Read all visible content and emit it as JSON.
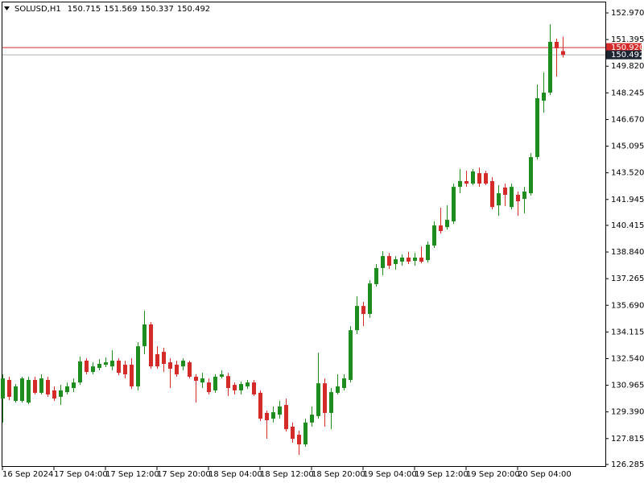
{
  "chart_data": {
    "type": "candlestick",
    "title": "SOLUSD,H1",
    "header_values": [
      150.715,
      151.569,
      150.337,
      150.492
    ],
    "categories": [
      "16 Sep 2024",
      null,
      null,
      null,
      null,
      null,
      null,
      null,
      "17 Sep 04:00",
      null,
      null,
      null,
      null,
      null,
      null,
      null,
      "17 Sep 12:00",
      null,
      null,
      null,
      null,
      null,
      null,
      null,
      "17 Sep 20:00",
      null,
      null,
      null,
      null,
      null,
      null,
      null,
      "18 Sep 04:00",
      null,
      null,
      null,
      null,
      null,
      null,
      null,
      "18 Sep 12:00",
      null,
      null,
      null,
      null,
      null,
      null,
      null,
      "18 Sep 20:00",
      null,
      null,
      null,
      null,
      null,
      null,
      null,
      "19 Sep 04:00",
      null,
      null,
      null,
      null,
      null,
      null,
      null,
      "19 Sep 12:00",
      null,
      null,
      null,
      null,
      null,
      null,
      null,
      "19 Sep 20:00",
      null,
      null,
      null,
      null,
      null,
      null,
      null,
      "20 Sep 04:00",
      null,
      null,
      null,
      null,
      null,
      null,
      null
    ],
    "open": [
      130.18,
      131.28,
      130.04,
      130.04,
      129.94,
      131.28,
      130.52,
      131.28,
      130.66,
      130.28,
      130.56,
      130.8,
      131.13,
      132.42,
      131.75,
      131.99,
      132.18,
      132.08,
      132.42,
      132.18,
      132.18,
      130.9,
      133.27,
      134.56,
      132.8,
      132.94,
      132.32,
      132.18,
      132.08,
      132.32,
      131.47,
      131.13,
      131.13,
      130.66,
      131.47,
      131.51,
      130.99,
      130.66,
      130.9,
      131.13,
      130.52,
      129.33,
      128.99,
      129.23,
      129.8,
      128.52,
      128.04,
      127.47,
      128.76,
      129.14,
      131.08,
      129.33,
      130.52,
      130.8,
      131.28,
      134.22,
      135.65,
      135.18,
      136.94,
      137.89,
      138.6,
      138.13,
      138.27,
      138.51,
      138.32,
      138.51,
      138.36,
      139.22,
      140.41,
      140.31,
      140.65,
      142.69,
      143.03,
      142.88,
      143.5,
      143.5,
      143.03,
      141.6,
      142.65,
      141.5,
      142.22,
      141.98,
      142.31,
      144.45,
      147.78,
      148.26,
      151.26,
      150.715
    ],
    "high": [
      131.61,
      131.47,
      131.04,
      131.47,
      131.47,
      131.47,
      131.61,
      131.47,
      130.9,
      130.99,
      131.13,
      131.37,
      132.66,
      132.56,
      132.32,
      132.51,
      132.61,
      133.04,
      132.56,
      132.42,
      132.56,
      133.51,
      135.37,
      134.7,
      133.27,
      133.18,
      132.56,
      132.42,
      132.56,
      132.42,
      131.61,
      131.7,
      131.37,
      131.61,
      131.85,
      131.7,
      131.13,
      131.18,
      131.28,
      131.28,
      130.66,
      129.47,
      129.71,
      130.04,
      130.18,
      128.76,
      128.28,
      128.99,
      129.71,
      132.89,
      131.37,
      130.8,
      131.61,
      131.61,
      134.46,
      136.22,
      135.89,
      137.17,
      138.13,
      138.89,
      138.79,
      138.6,
      138.7,
      138.84,
      138.79,
      139.17,
      139.46,
      140.65,
      141.46,
      141.6,
      142.88,
      143.74,
      143.64,
      143.74,
      143.83,
      143.64,
      143.26,
      142.79,
      142.88,
      142.88,
      142.41,
      142.69,
      144.69,
      148.73,
      149.45,
      152.3,
      151.45,
      151.569
    ],
    "low": [
      128.76,
      130.09,
      129.94,
      129.94,
      129.85,
      130.42,
      130.42,
      130.28,
      130.04,
      129.8,
      130.42,
      130.56,
      130.99,
      131.61,
      131.61,
      131.85,
      132.04,
      131.85,
      131.56,
      131.37,
      130.75,
      130.66,
      132.8,
      131.94,
      131.94,
      131.75,
      130.8,
      131.47,
      131.85,
      131.37,
      129.94,
      130.8,
      130.42,
      130.52,
      131.37,
      130.33,
      130.42,
      130.42,
      130.75,
      130.33,
      128.85,
      127.8,
      128.76,
      128.99,
      128.23,
      127.57,
      126.85,
      127.33,
      128.52,
      128.99,
      128.52,
      128.37,
      130.42,
      130.66,
      131.13,
      133.99,
      134.46,
      134.94,
      136.79,
      137.46,
      137.84,
      137.79,
      138.03,
      138.13,
      138.03,
      138.17,
      138.22,
      139.08,
      139.93,
      140.17,
      140.5,
      142.31,
      142.69,
      142.79,
      142.69,
      142.79,
      141.36,
      140.98,
      141.55,
      141.36,
      140.98,
      141.12,
      142.17,
      144.31,
      147.07,
      148.12,
      149.21,
      150.337
    ],
    "close": [
      131.37,
      130.28,
      130.9,
      131.37,
      131.28,
      130.52,
      131.37,
      130.42,
      130.18,
      130.66,
      130.9,
      131.13,
      132.37,
      131.75,
      132.08,
      132.23,
      132.32,
      132.42,
      131.7,
      131.61,
      130.9,
      133.27,
      134.56,
      132.08,
      132.08,
      132.23,
      131.94,
      131.61,
      132.42,
      131.47,
      131.23,
      131.37,
      130.56,
      131.47,
      131.61,
      130.8,
      130.66,
      131.04,
      131.13,
      130.42,
      128.99,
      128.9,
      129.37,
      129.71,
      128.37,
      127.8,
      127.47,
      128.76,
      129.23,
      131.08,
      129.33,
      130.56,
      130.9,
      131.37,
      134.22,
      135.65,
      135.18,
      136.98,
      137.89,
      138.6,
      138.03,
      138.41,
      138.51,
      138.27,
      138.51,
      138.27,
      139.27,
      140.41,
      140.08,
      140.74,
      142.69,
      143.03,
      142.88,
      143.6,
      142.88,
      142.88,
      141.5,
      142.31,
      142.22,
      142.69,
      141.84,
      142.41,
      144.45,
      147.93,
      148.26,
      151.26,
      150.88,
      150.492
    ],
    "up_color": "#1e8c1e",
    "down_color": "#d42a2a",
    "ylim": [
      126.14,
      153.59
    ],
    "yticks": [
      {
        "value": 152.97,
        "label": "152.970"
      },
      151.395,
      {
        "value": 149.82,
        "label": "149.820"
      },
      148.245,
      {
        "value": 146.67,
        "label": "146.670"
      },
      145.095,
      {
        "value": 143.52,
        "label": "143.520"
      },
      141.945,
      140.415,
      {
        "value": 138.84,
        "label": "138.840"
      },
      137.265,
      {
        "value": 135.69,
        "label": "135.690"
      },
      134.115,
      {
        "value": 132.54,
        "label": "132.540"
      },
      130.965,
      {
        "value": 129.39,
        "label": "129.390"
      },
      127.815,
      126.285
    ],
    "price_lines": [
      {
        "value": 150.92,
        "label": "150.920",
        "color": "#d42a2a"
      },
      {
        "value": 150.492,
        "color": "#1c2331"
      }
    ],
    "grid": false
  }
}
